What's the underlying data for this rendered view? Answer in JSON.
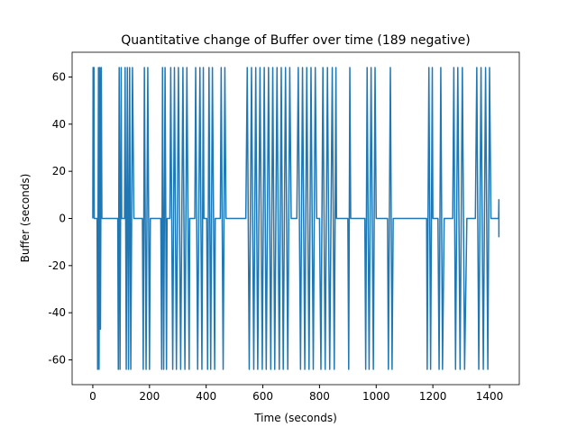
{
  "chart_data": {
    "type": "line",
    "title": "Quantitative change of Buffer over time (189 negative)",
    "x_label": "Time (seconds)",
    "y_label": "Buffer (seconds)",
    "x": [
      0,
      1,
      4,
      5,
      15,
      17,
      20,
      22,
      25,
      27,
      30,
      32,
      88,
      90,
      93,
      96,
      100,
      102,
      112,
      114,
      118,
      122,
      126,
      130,
      134,
      140,
      145,
      175,
      178,
      182,
      188,
      194,
      200,
      203,
      240,
      243,
      246,
      250,
      255,
      260,
      262,
      272,
      275,
      282,
      288,
      295,
      302,
      310,
      318,
      325,
      332,
      340,
      342,
      360,
      363,
      370,
      378,
      385,
      390,
      392,
      402,
      405,
      410,
      416,
      422,
      430,
      432,
      450,
      453,
      460,
      466,
      470,
      540,
      545,
      552,
      560,
      568,
      575,
      582,
      590,
      598,
      605,
      612,
      620,
      628,
      635,
      642,
      650,
      658,
      665,
      672,
      680,
      688,
      695,
      700,
      720,
      725,
      733,
      740,
      748,
      755,
      763,
      770,
      778,
      785,
      790,
      800,
      805,
      812,
      820,
      828,
      836,
      845,
      852,
      858,
      860,
      900,
      903,
      907,
      910,
      960,
      963,
      968,
      975,
      982,
      990,
      996,
      1000,
      1040,
      1043,
      1050,
      1056,
      1060,
      1178,
      1180,
      1186,
      1192,
      1198,
      1200,
      1218,
      1222,
      1228,
      1234,
      1240,
      1270,
      1274,
      1280,
      1288,
      1296,
      1304,
      1312,
      1320,
      1350,
      1355,
      1362,
      1370,
      1378,
      1386,
      1394,
      1400,
      1405,
      1432,
      1433,
      1433
    ],
    "series": [
      {
        "name": "Buffer",
        "color": "#1f77b4",
        "values": [
          0,
          64,
          64,
          0,
          0,
          -64,
          64,
          -64,
          64,
          -47,
          64,
          0,
          0,
          -64,
          64,
          -64,
          64,
          0,
          0,
          64,
          -64,
          64,
          -64,
          64,
          -64,
          64,
          0,
          0,
          -64,
          64,
          -64,
          64,
          -64,
          0,
          0,
          -64,
          64,
          -64,
          64,
          -64,
          0,
          0,
          64,
          -64,
          64,
          -64,
          64,
          -64,
          64,
          -64,
          64,
          -64,
          0,
          0,
          64,
          -64,
          64,
          -64,
          64,
          0,
          0,
          -64,
          64,
          -64,
          64,
          -64,
          0,
          0,
          64,
          -64,
          64,
          0,
          0,
          64,
          -64,
          64,
          -64,
          64,
          -64,
          64,
          -64,
          64,
          -64,
          64,
          -64,
          64,
          -64,
          64,
          -64,
          64,
          -64,
          64,
          -64,
          64,
          0,
          0,
          64,
          -64,
          64,
          -64,
          64,
          -64,
          64,
          -64,
          64,
          0,
          0,
          -64,
          64,
          -64,
          64,
          -64,
          64,
          -64,
          64,
          0,
          0,
          -64,
          64,
          0,
          0,
          -64,
          64,
          -64,
          64,
          -64,
          64,
          0,
          0,
          -64,
          64,
          -64,
          0,
          0,
          -64,
          64,
          -64,
          64,
          0,
          0,
          -64,
          64,
          -64,
          0,
          0,
          64,
          -64,
          64,
          -64,
          64,
          -64,
          0,
          0,
          64,
          -64,
          64,
          -64,
          64,
          -64,
          64,
          0,
          0,
          8,
          -8
        ]
      }
    ],
    "xlim": [
      -73,
      1505
    ],
    "ylim": [
      -70.5,
      70.5
    ],
    "xticks": [
      0,
      200,
      400,
      600,
      800,
      1000,
      1200,
      1400
    ],
    "yticks": [
      -60,
      -40,
      -20,
      0,
      20,
      40,
      60
    ]
  }
}
